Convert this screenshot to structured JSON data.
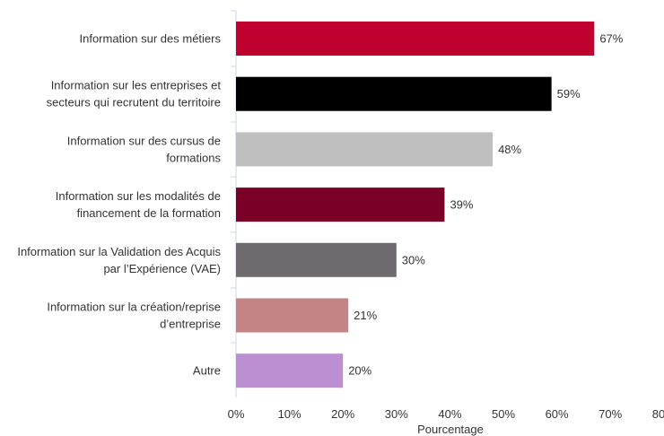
{
  "chart_data": {
    "type": "bar",
    "orientation": "horizontal",
    "categories": [
      [
        "Information sur des métiers"
      ],
      [
        "Information sur les entreprises et",
        "secteurs qui recrutent du territoire"
      ],
      [
        "Information sur des cursus de",
        "formations"
      ],
      [
        "Information sur les modalités de",
        "financement de la formation"
      ],
      [
        "Information sur la Validation des Acquis",
        "par l’Expérience (VAE)"
      ],
      [
        "Information sur la création/reprise",
        "d’entreprise"
      ],
      [
        "Autre"
      ]
    ],
    "values": [
      67,
      59,
      48,
      39,
      30,
      21,
      20
    ],
    "value_labels": [
      "67%",
      "59%",
      "48%",
      "39%",
      "30%",
      "21%",
      "20%"
    ],
    "colors": [
      "#c0002e",
      "#000000",
      "#bfbfbf",
      "#7a0028",
      "#6f6a6e",
      "#c48387",
      "#bb8fd1"
    ],
    "xlim": [
      0,
      80
    ],
    "xticks": [
      0,
      10,
      20,
      30,
      40,
      50,
      60,
      70,
      80
    ],
    "xtick_labels": [
      "0%",
      "10%",
      "20%",
      "30%",
      "40%",
      "50%",
      "60%",
      "70%",
      "80%"
    ],
    "xlabel": "Pourcentage",
    "ylabel": "",
    "title": "",
    "grid": false,
    "legend": "none"
  }
}
